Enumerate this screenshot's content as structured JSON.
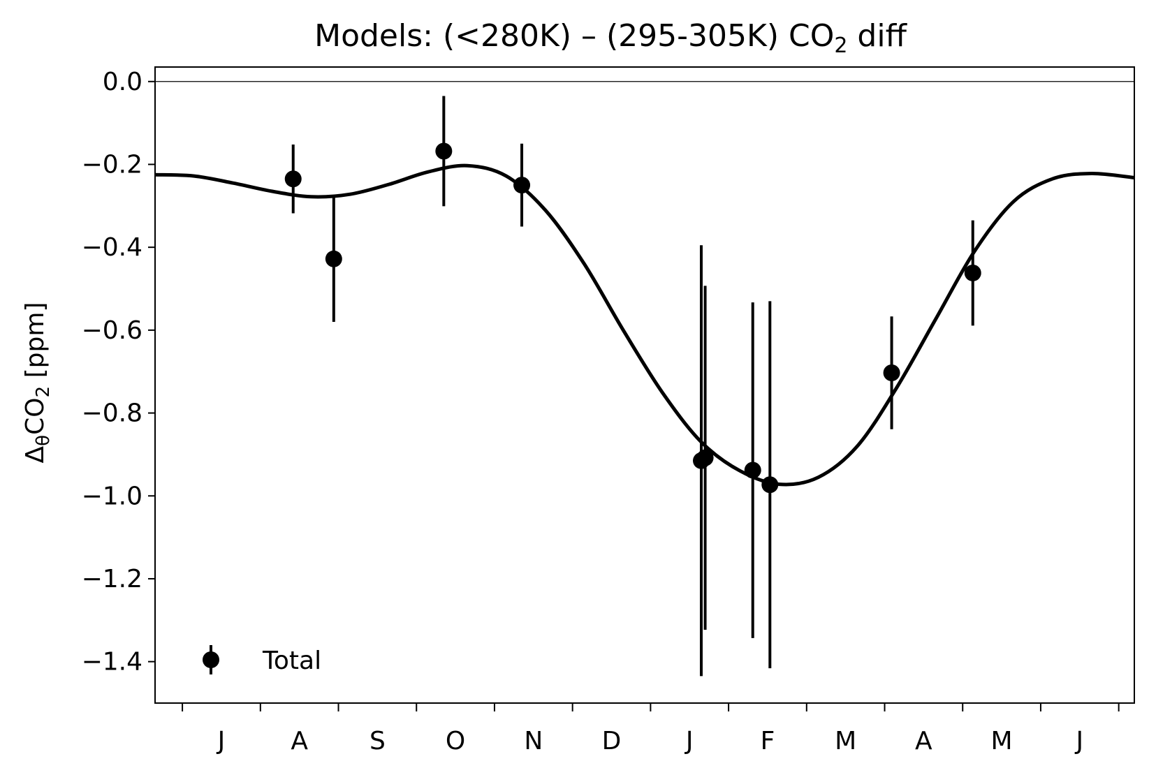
{
  "chart_data": {
    "type": "scatter",
    "title_main": "Models: (<280K) – (295-305K) CO",
    "title_sub": "2",
    "title_tail": " diff",
    "ylabel_main": "Δ",
    "ylabel_theta": "θ",
    "ylabel_co": "CO",
    "ylabel_sub": "2",
    "ylabel_tail": " [ppm]",
    "ylim": [
      -1.5,
      0.035
    ],
    "xlim": [
      0,
      12.55
    ],
    "yticks": [
      0.0,
      -0.2,
      -0.4,
      -0.6,
      -0.8,
      -1.0,
      -1.2,
      -1.4
    ],
    "ytick_labels": [
      "0.0",
      "−0.2",
      "−0.4",
      "−0.6",
      "−0.8",
      "−1.0",
      "−1.2",
      "−1.4"
    ],
    "month_labels": [
      "J",
      "A",
      "S",
      "O",
      "N",
      "D",
      "J",
      "F",
      "M",
      "A",
      "M",
      "J"
    ],
    "reference_line_y": 0.0,
    "legend": {
      "label": "Total",
      "position": "lower-left"
    },
    "points": [
      {
        "x": 1.77,
        "y": -0.235,
        "err": 0.083
      },
      {
        "x": 2.29,
        "y": -0.428,
        "err": 0.152
      },
      {
        "x": 3.7,
        "y": -0.168,
        "err": 0.133
      },
      {
        "x": 4.7,
        "y": -0.25,
        "err": 0.1
      },
      {
        "x": 7.0,
        "y": -0.915,
        "err": 0.52
      },
      {
        "x": 7.05,
        "y": -0.908,
        "err": 0.415
      },
      {
        "x": 7.66,
        "y": -0.938,
        "err": 0.405
      },
      {
        "x": 7.88,
        "y": -0.973,
        "err": 0.443
      },
      {
        "x": 9.44,
        "y": -0.703,
        "err": 0.136
      },
      {
        "x": 10.48,
        "y": -0.462,
        "err": 0.127
      }
    ],
    "fit_curve": {
      "x": [
        0.0,
        0.5,
        1.0,
        1.5,
        2.0,
        2.5,
        3.0,
        3.5,
        4.0,
        4.5,
        5.0,
        5.5,
        6.0,
        6.5,
        7.0,
        7.5,
        8.0,
        8.5,
        9.0,
        9.5,
        10.0,
        10.5,
        11.0,
        11.5,
        12.0,
        12.55
      ],
      "y": [
        -0.225,
        -0.228,
        -0.245,
        -0.265,
        -0.278,
        -0.272,
        -0.248,
        -0.218,
        -0.203,
        -0.228,
        -0.31,
        -0.44,
        -0.6,
        -0.75,
        -0.87,
        -0.94,
        -0.972,
        -0.955,
        -0.88,
        -0.74,
        -0.575,
        -0.41,
        -0.29,
        -0.235,
        -0.222,
        -0.232
      ]
    }
  }
}
